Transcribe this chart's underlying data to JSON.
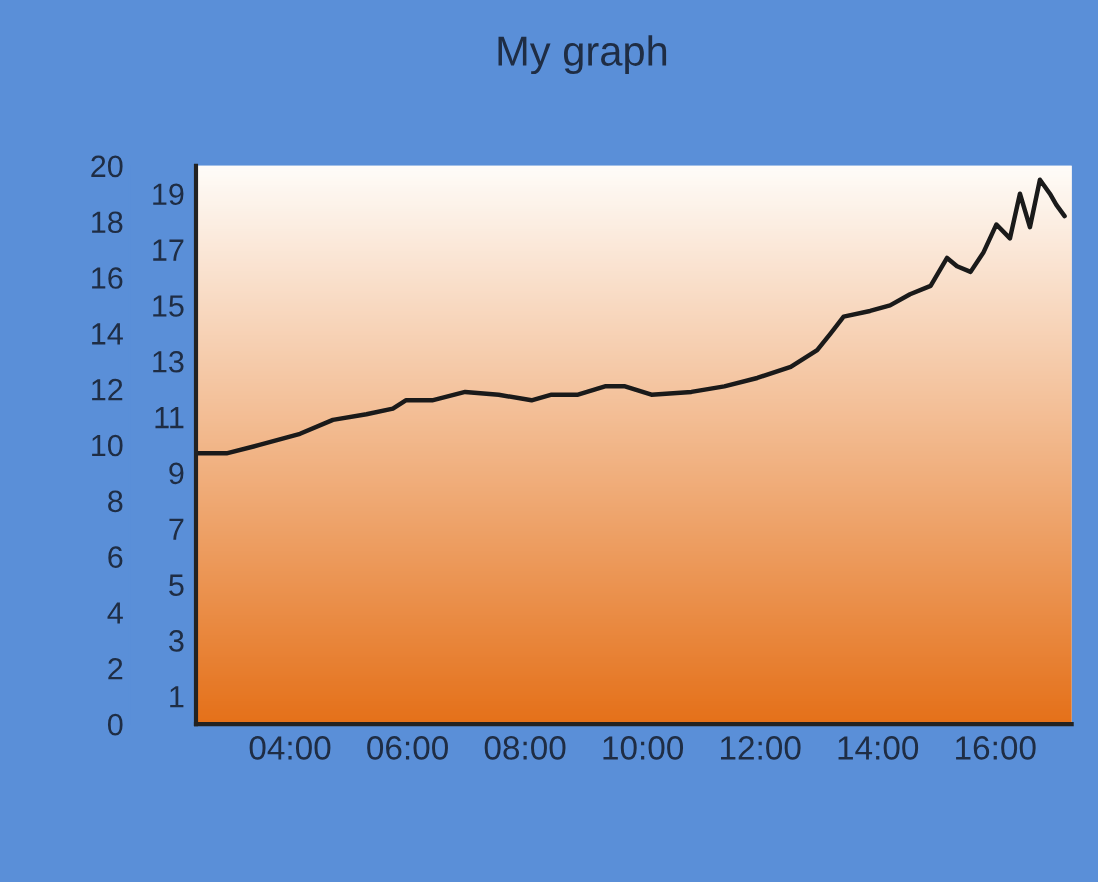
{
  "chart_data": {
    "type": "line",
    "title": "My graph",
    "x": [
      2.41,
      2.92,
      3.48,
      4.17,
      4.73,
      5.3,
      5.75,
      5.97,
      6.42,
      6.98,
      7.55,
      8.11,
      8.45,
      8.9,
      9.36,
      9.7,
      10.15,
      10.83,
      11.39,
      11.95,
      12.52,
      12.97,
      13.2,
      13.42,
      13.87,
      14.21,
      14.55,
      14.9,
      15.18,
      15.35,
      15.58,
      15.8,
      16.02,
      16.25,
      16.42,
      16.59,
      16.76,
      16.93,
      17.04,
      17.18
    ],
    "series": [
      {
        "color": "#1a1a1a",
        "values": [
          9.7,
          9.7,
          10.0,
          10.4,
          10.9,
          11.1,
          11.3,
          11.6,
          11.6,
          11.9,
          11.8,
          11.6,
          11.8,
          11.8,
          12.1,
          12.1,
          11.8,
          11.9,
          12.1,
          12.4,
          12.8,
          13.4,
          14.0,
          14.6,
          14.8,
          15.0,
          15.4,
          15.7,
          16.7,
          16.4,
          16.2,
          16.9,
          17.9,
          17.4,
          19.0,
          17.8,
          19.5,
          19.0,
          18.6,
          18.2
        ]
      }
    ],
    "xlim": [
      2.4,
      17.3
    ],
    "xticks": [
      {
        "value": 4,
        "label": "04:00"
      },
      {
        "value": 6,
        "label": "06:00"
      },
      {
        "value": 8,
        "label": "08:00"
      },
      {
        "value": 10,
        "label": "10:00"
      },
      {
        "value": 12,
        "label": "12:00"
      },
      {
        "value": 14,
        "label": "14:00"
      },
      {
        "value": 16,
        "label": "16:00"
      }
    ],
    "ylim": [
      0,
      20
    ],
    "yticks": [
      0,
      2,
      4,
      6,
      8,
      10,
      12,
      14,
      16,
      18,
      20
    ],
    "y2lim": [
      0,
      20
    ],
    "y2ticks": [
      1,
      3,
      5,
      7,
      9,
      11,
      13,
      15,
      17,
      19
    ],
    "grid": false,
    "legend": false,
    "marker": "none",
    "line_style": "solid"
  }
}
